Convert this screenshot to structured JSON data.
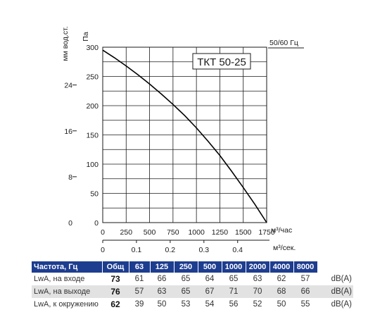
{
  "chart_data": {
    "type": "line",
    "model_label": "ТКТ 50-25",
    "left_axis_label": "мм вод.ст.",
    "left_axis_ticks": [
      "24",
      "16",
      "8",
      "0"
    ],
    "ylabel": "Па",
    "y_ticks": [
      "300",
      "250",
      "200",
      "150",
      "100",
      "50",
      "0"
    ],
    "ylim": [
      0,
      300
    ],
    "frequency_label": "50/60 Гц",
    "xlabel": "м³/час",
    "x_ticks": [
      "0",
      "250",
      "500",
      "750",
      "1000",
      "1250",
      "1500",
      "1750"
    ],
    "xlim": [
      0,
      1750
    ],
    "x2label": "м³/сек.",
    "x2_ticks": [
      "0",
      "0.1",
      "0.2",
      "0.3",
      "0.4"
    ],
    "grid": true,
    "series": [
      {
        "x": [
          0,
          125,
          250,
          375,
          500,
          625,
          750,
          875,
          1000,
          1125,
          1250,
          1375,
          1500,
          1625,
          1750
        ],
        "y": [
          295,
          282,
          268,
          253,
          237,
          220,
          202,
          183,
          162,
          139,
          115,
          88,
          60,
          31,
          0
        ]
      }
    ]
  },
  "noise_table": {
    "headers": [
      "Частота, Гц",
      "Общ",
      "63",
      "125",
      "250",
      "500",
      "1000",
      "2000",
      "4000",
      "8000",
      ""
    ],
    "rows": [
      {
        "label": "LwA, на входе",
        "total": "73",
        "values": [
          "61",
          "66",
          "65",
          "64",
          "65",
          "63",
          "62",
          "57"
        ],
        "unit": "dB(A)"
      },
      {
        "label": "LwA, на выходе",
        "total": "76",
        "values": [
          "57",
          "63",
          "65",
          "67",
          "71",
          "70",
          "68",
          "66"
        ],
        "unit": "dB(A)"
      },
      {
        "label": "LwA, к окружению",
        "total": "62",
        "values": [
          "39",
          "50",
          "53",
          "54",
          "56",
          "52",
          "50",
          "55"
        ],
        "unit": "dB(A)"
      }
    ]
  }
}
